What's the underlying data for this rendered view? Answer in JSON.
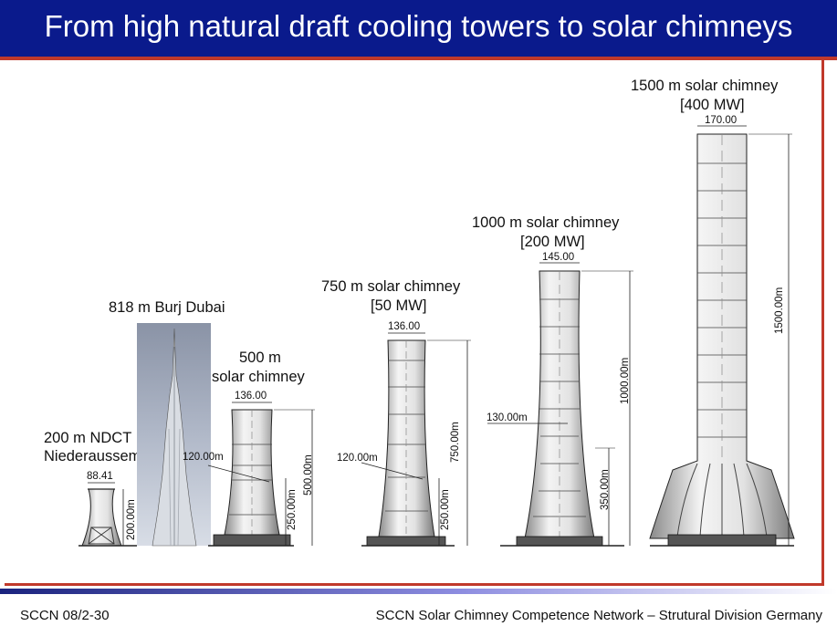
{
  "slide": {
    "title": "From high natural draft cooling towers to solar chimneys",
    "footer_left": "SCCN 08/2-30",
    "footer_right": "SCCN Solar Chimney Competence Network – Strutural Division Germany"
  },
  "structures": {
    "ndct": {
      "label_line1": "200 m NDCT",
      "label_line2": "Niederaussem",
      "top_diameter": "88.41",
      "height": "200.00m"
    },
    "burj": {
      "label": "818 m Burj Dubai"
    },
    "chimney_500": {
      "label_line1": "500 m",
      "label_line2": "solar chimney",
      "top_diameter": "136.00",
      "waist_diameter": "120.00m",
      "waist_height": "250.00m",
      "height": "500.00m"
    },
    "chimney_750": {
      "label_line1": "750 m solar chimney",
      "label_line2": "[50 MW]",
      "top_diameter": "136.00",
      "waist_diameter": "120.00m",
      "waist_height": "250.00m",
      "height": "750.00m"
    },
    "chimney_1000": {
      "label_line1": "1000 m solar chimney",
      "label_line2": "[200 MW]",
      "top_diameter": "145.00",
      "waist_diameter": "130.00m",
      "waist_height": "350.00m",
      "height": "1000.00m"
    },
    "chimney_1500": {
      "label_line1": "1500 m solar chimney",
      "label_line2": "[400 MW]",
      "top_diameter": "170.00",
      "height": "1500.00m"
    }
  },
  "colors": {
    "title_bar": "#0a1a8c",
    "accent_red": "#c0392b"
  }
}
